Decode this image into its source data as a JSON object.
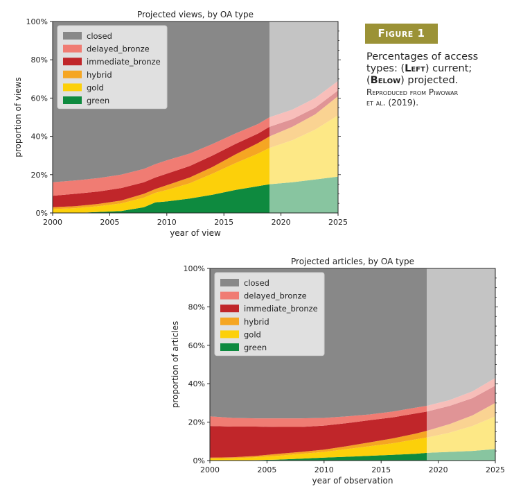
{
  "figure": {
    "badge": "Figure 1",
    "caption_l1": "Percentages of access",
    "caption_l2a": "types: (",
    "caption_left": "Left",
    "caption_l2b": ") current;",
    "caption_l3a": "(",
    "caption_below": "Below",
    "caption_l3b": ") projected.",
    "credit_l1": "Reproduced from Piwowar",
    "credit_l2": "et al. (2019)."
  },
  "colors": {
    "closed": "#888888",
    "delayed_bronze": "#f07c73",
    "immediate_bronze": "#c0262a",
    "hybrid": "#f5a623",
    "gold": "#fcd00a",
    "green": "#0e8a3f"
  },
  "chart_data": [
    {
      "type": "area",
      "title": "Projected views, by OA type",
      "xlabel": "year of view",
      "ylabel": "proportion of views",
      "xlim": [
        2000,
        2025
      ],
      "ylim": [
        0,
        1
      ],
      "xticks": [
        "2000",
        "2005",
        "2010",
        "2015",
        "2020",
        "2025"
      ],
      "yticks": [
        "0%",
        "20%",
        "40%",
        "60%",
        "80%",
        "100%"
      ],
      "projection_start": 2019,
      "legend_position": "top-left",
      "x": [
        2000,
        2002,
        2004,
        2006,
        2008,
        2009,
        2010,
        2012,
        2014,
        2016,
        2018,
        2019,
        2021,
        2023,
        2025
      ],
      "series": [
        {
          "name": "green",
          "key": "green",
          "values": [
            0.0,
            0.0,
            0.005,
            0.01,
            0.03,
            0.055,
            0.06,
            0.075,
            0.095,
            0.12,
            0.14,
            0.15,
            0.16,
            0.175,
            0.19
          ]
        },
        {
          "name": "gold",
          "key": "gold",
          "values": [
            0.02,
            0.025,
            0.03,
            0.04,
            0.05,
            0.05,
            0.06,
            0.08,
            0.11,
            0.14,
            0.17,
            0.19,
            0.22,
            0.26,
            0.32
          ]
        },
        {
          "name": "hybrid",
          "key": "hybrid",
          "values": [
            0.01,
            0.01,
            0.012,
            0.015,
            0.02,
            0.02,
            0.025,
            0.03,
            0.035,
            0.045,
            0.055,
            0.06,
            0.07,
            0.08,
            0.1
          ]
        },
        {
          "name": "immediate_bronze",
          "key": "immediate_bronze",
          "values": [
            0.06,
            0.065,
            0.065,
            0.065,
            0.06,
            0.06,
            0.06,
            0.06,
            0.06,
            0.055,
            0.05,
            0.05,
            0.04,
            0.035,
            0.03
          ]
        },
        {
          "name": "delayed_bronze",
          "key": "delayed_bronze",
          "values": [
            0.07,
            0.07,
            0.07,
            0.07,
            0.07,
            0.07,
            0.07,
            0.065,
            0.06,
            0.055,
            0.05,
            0.05,
            0.05,
            0.05,
            0.05
          ]
        },
        {
          "name": "closed",
          "key": "closed",
          "values": [
            0.84,
            0.83,
            0.818,
            0.8,
            0.77,
            0.745,
            0.725,
            0.69,
            0.64,
            0.585,
            0.535,
            0.5,
            0.46,
            0.4,
            0.31
          ]
        }
      ]
    },
    {
      "type": "area",
      "title": "Projected articles, by OA type",
      "xlabel": "year of observation",
      "ylabel": "proportion of articles",
      "xlim": [
        2000,
        2025
      ],
      "ylim": [
        0,
        1
      ],
      "xticks": [
        "2000",
        "2005",
        "2010",
        "2015",
        "2020",
        "2025"
      ],
      "yticks": [
        "0%",
        "20%",
        "40%",
        "60%",
        "80%",
        "100%"
      ],
      "projection_start": 2019,
      "legend_position": "top-left",
      "x": [
        2000,
        2002,
        2004,
        2006,
        2008,
        2010,
        2012,
        2014,
        2016,
        2018,
        2019,
        2021,
        2023,
        2025
      ],
      "series": [
        {
          "name": "green",
          "key": "green",
          "values": [
            0.0,
            0.0,
            0.002,
            0.005,
            0.01,
            0.015,
            0.02,
            0.025,
            0.03,
            0.035,
            0.04,
            0.045,
            0.05,
            0.06
          ]
        },
        {
          "name": "gold",
          "key": "gold",
          "values": [
            0.01,
            0.012,
            0.015,
            0.02,
            0.025,
            0.03,
            0.04,
            0.05,
            0.06,
            0.075,
            0.08,
            0.1,
            0.13,
            0.17
          ]
        },
        {
          "name": "hybrid",
          "key": "hybrid",
          "values": [
            0.005,
            0.005,
            0.007,
            0.01,
            0.01,
            0.012,
            0.015,
            0.02,
            0.025,
            0.03,
            0.035,
            0.045,
            0.055,
            0.07
          ]
        },
        {
          "name": "immediate_bronze",
          "key": "immediate_bronze",
          "values": [
            0.165,
            0.16,
            0.153,
            0.14,
            0.13,
            0.125,
            0.12,
            0.115,
            0.11,
            0.105,
            0.1,
            0.095,
            0.09,
            0.09
          ]
        },
        {
          "name": "delayed_bronze",
          "key": "delayed_bronze",
          "values": [
            0.05,
            0.045,
            0.043,
            0.045,
            0.045,
            0.04,
            0.035,
            0.03,
            0.03,
            0.03,
            0.03,
            0.03,
            0.035,
            0.04
          ]
        },
        {
          "name": "closed",
          "key": "closed",
          "values": [
            0.77,
            0.778,
            0.78,
            0.78,
            0.78,
            0.778,
            0.77,
            0.76,
            0.745,
            0.725,
            0.715,
            0.685,
            0.64,
            0.57
          ]
        }
      ]
    }
  ]
}
